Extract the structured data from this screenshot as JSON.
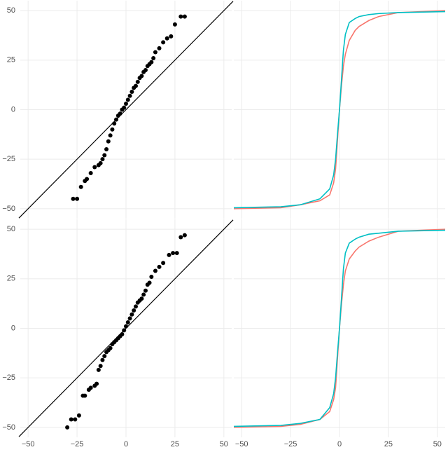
{
  "chart_data": [
    {
      "type": "scatter",
      "color": "#000000",
      "x": [
        -27,
        -25,
        -23,
        -21,
        -20,
        -18,
        -16,
        -14,
        -13,
        -12,
        -11,
        -10,
        -9,
        -8,
        -7,
        -6,
        -5,
        -4,
        -3,
        -2,
        -1,
        0,
        1,
        2,
        3,
        4,
        5,
        6,
        7,
        8,
        9,
        10,
        11,
        12,
        13,
        14,
        15,
        17,
        19,
        21,
        23,
        25,
        28,
        30
      ],
      "values": [
        -45,
        -45,
        -39,
        -36,
        -35,
        -32,
        -29,
        -28,
        -27,
        -25,
        -23,
        -20,
        -16,
        -13,
        -10,
        -7,
        -5,
        -3,
        -2,
        0,
        1,
        3,
        5,
        7,
        9,
        11,
        12,
        14,
        16,
        17,
        19,
        20,
        22,
        23,
        24,
        26,
        29,
        31,
        34,
        36,
        37,
        43,
        47,
        47
      ],
      "xlim": [
        -54,
        54
      ],
      "ylim": [
        -55,
        55
      ],
      "xticks": [
        {
          "value": -50,
          "label": "−50"
        },
        {
          "value": -25,
          "label": "−25"
        },
        0,
        25,
        50
      ],
      "yticks": [
        {
          "value": -50,
          "label": "−50"
        },
        {
          "value": -25,
          "label": "−25"
        },
        0,
        25,
        50
      ],
      "grid": true
    },
    {
      "type": "line",
      "x": [
        -54,
        -30,
        -20,
        -10,
        -5,
        -3,
        -2,
        -1,
        0,
        1,
        2,
        3,
        5,
        8,
        10,
        15,
        20,
        30,
        54
      ],
      "series": [
        {
          "color": "#F8766D",
          "values": [
            -50,
            -49.5,
            -48,
            -46,
            -43,
            -37,
            -30,
            -15,
            0,
            12,
            22,
            28,
            35,
            40,
            42,
            45,
            47,
            49,
            50
          ]
        },
        {
          "color": "#00BFC4",
          "values": [
            -49.5,
            -49,
            -48,
            -45,
            -40,
            -33,
            -25,
            -12,
            0,
            15,
            30,
            38,
            44,
            46,
            47,
            48,
            48.5,
            49,
            49.5
          ]
        }
      ],
      "xlim": [
        -54,
        54
      ],
      "ylim": [
        -55,
        55
      ],
      "xticks": [
        {
          "value": -50,
          "label": "−50"
        },
        {
          "value": -25,
          "label": "−25"
        },
        0,
        25,
        50
      ],
      "yticks": [
        {
          "value": -50,
          "label": "−50"
        },
        {
          "value": -25,
          "label": "−25"
        },
        0,
        25,
        50
      ],
      "grid": true
    },
    {
      "type": "scatter",
      "color": "#000000",
      "x": [
        -30,
        -28,
        -26,
        -24,
        -22,
        -21,
        -19,
        -18,
        -16,
        -15,
        -14,
        -13,
        -12,
        -11,
        -10,
        -9,
        -8,
        -7,
        -6,
        -5,
        -4,
        -3,
        -2,
        -1,
        0,
        1,
        2,
        3,
        4,
        5,
        6,
        7,
        8,
        9,
        10,
        11,
        12,
        13,
        15,
        17,
        19,
        22,
        24,
        26,
        28,
        30
      ],
      "values": [
        -50,
        -46,
        -46,
        -44,
        -34,
        -34,
        -31,
        -30,
        -29,
        -28,
        -21,
        -19,
        -16,
        -14,
        -12,
        -11,
        -10,
        -8,
        -7,
        -6,
        -5,
        -4,
        -3,
        -1,
        1,
        3,
        5,
        7,
        9,
        11,
        13,
        14,
        15,
        17,
        19,
        22,
        23,
        26,
        29,
        31,
        33,
        37,
        38,
        38,
        46,
        47
      ],
      "xlim": [
        -54,
        54
      ],
      "ylim": [
        -55,
        55
      ],
      "xticks": [
        {
          "value": -50,
          "label": "−50"
        },
        {
          "value": -25,
          "label": "−25"
        },
        0,
        25,
        50
      ],
      "yticks": [
        {
          "value": -50,
          "label": "−50"
        },
        {
          "value": -25,
          "label": "−25"
        },
        0,
        25,
        50
      ],
      "grid": true
    },
    {
      "type": "line",
      "x": [
        -54,
        -30,
        -20,
        -10,
        -5,
        -3,
        -2,
        -1,
        0,
        1,
        2,
        3,
        5,
        8,
        10,
        15,
        20,
        30,
        54
      ],
      "series": [
        {
          "color": "#F8766D",
          "values": [
            -50,
            -49.5,
            -48.5,
            -46,
            -42,
            -36,
            -30,
            -15,
            0,
            12,
            22,
            29,
            35,
            39,
            41,
            44,
            46,
            49,
            50
          ]
        },
        {
          "color": "#00BFC4",
          "values": [
            -49.5,
            -49,
            -48,
            -46,
            -40,
            -33,
            -25,
            -12,
            0,
            15,
            30,
            38,
            43,
            45,
            46,
            47.5,
            48,
            49,
            49.5
          ]
        }
      ],
      "xlim": [
        -54,
        54
      ],
      "ylim": [
        -55,
        55
      ],
      "xticks": [
        {
          "value": -50,
          "label": "−50"
        },
        {
          "value": -25,
          "label": "−25"
        },
        0,
        25,
        50
      ],
      "yticks": [
        {
          "value": -50,
          "label": "−50"
        },
        {
          "value": -25,
          "label": "−25"
        },
        0,
        25,
        50
      ],
      "grid": true
    }
  ]
}
